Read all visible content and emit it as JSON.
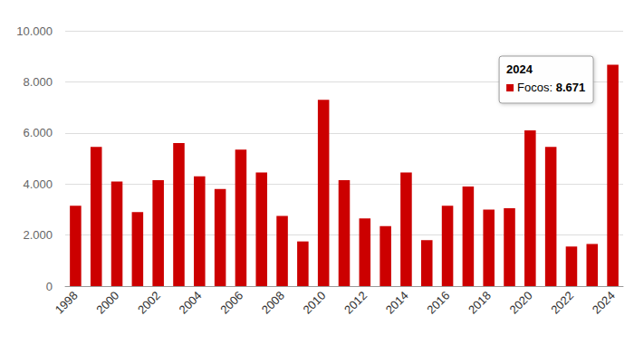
{
  "chart_data": {
    "type": "bar",
    "categories": [
      "1998",
      null,
      "2000",
      null,
      "2002",
      null,
      "2004",
      null,
      "2006",
      null,
      "2008",
      null,
      "2010",
      null,
      "2012",
      null,
      "2014",
      null,
      "2016",
      null,
      "2018",
      null,
      "2020",
      null,
      "2022",
      null,
      "2024"
    ],
    "values": [
      3150,
      5450,
      4100,
      2900,
      4150,
      5600,
      4300,
      3800,
      5350,
      4450,
      2750,
      1750,
      7300,
      4150,
      2650,
      2350,
      4450,
      1800,
      3150,
      3900,
      3000,
      3050,
      6100,
      5450,
      1550,
      1650,
      8671
    ],
    "color": "#cc0000",
    "ylim": [
      0,
      10000
    ],
    "yticks": [
      0,
      {
        "value": 2000,
        "label": "2.000"
      },
      {
        "value": 4000,
        "label": "4.000"
      },
      {
        "value": 6000,
        "label": "6.000"
      },
      {
        "value": 8000,
        "label": "8.000"
      },
      {
        "value": 10000,
        "label": "10.000"
      }
    ],
    "grid": true,
    "annotation": {
      "category": "2024",
      "series_label": "Focos:",
      "value": 8671,
      "value_label": "8.671"
    }
  }
}
